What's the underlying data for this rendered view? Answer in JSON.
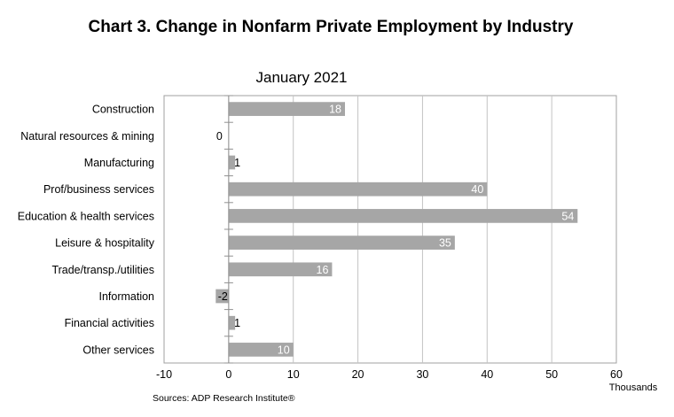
{
  "chart_data": {
    "type": "bar",
    "orientation": "horizontal",
    "title": "Chart 3. Change in Nonfarm Private Employment by Industry",
    "subtitle": "January 2021",
    "categories": [
      "Construction",
      "Natural resources & mining",
      "Manufacturing",
      "Prof/business services",
      "Education & health services",
      "Leisure & hospitality",
      "Trade/transp./utilities",
      "Information",
      "Financial activities",
      "Other services"
    ],
    "values": [
      18,
      0,
      1,
      40,
      54,
      35,
      16,
      -2,
      1,
      10
    ],
    "xlim": [
      -10,
      60
    ],
    "xticks": [
      -10,
      0,
      10,
      20,
      30,
      40,
      50,
      60
    ],
    "xunit": "Thousands",
    "grid": true,
    "bar_color": "#a6a6a6",
    "source": "Sources: ADP Research Institute®"
  }
}
